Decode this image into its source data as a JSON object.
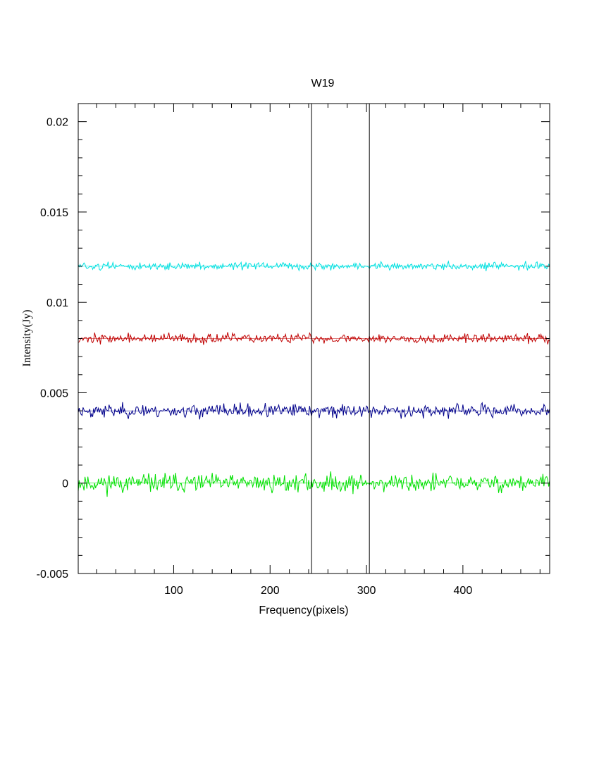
{
  "chart_data": {
    "type": "line",
    "title": "W19",
    "xlabel": "Frequency(pixels)",
    "ylabel": "Intensity(Jy)",
    "xlim": [
      1,
      490
    ],
    "ylim": [
      -0.005,
      0.021
    ],
    "x_ticks": [
      100,
      200,
      300,
      400
    ],
    "x_tick_labels": [
      "100",
      "200",
      "300",
      "400"
    ],
    "y_ticks": [
      -0.005,
      0,
      0.005,
      0.01,
      0.015,
      0.02
    ],
    "y_tick_labels": [
      "-0.005",
      "0",
      "0.005",
      "0.01",
      "0.015",
      "0.02"
    ],
    "grid": false,
    "legend": false,
    "vertical_markers": [
      243,
      303
    ],
    "series": [
      {
        "color": "#00e000",
        "baseline": 0.0,
        "noise": 0.00025,
        "seed": 11
      },
      {
        "color": "#00008b",
        "baseline": 0.004,
        "noise": 0.00018,
        "seed": 23
      },
      {
        "color": "#c00000",
        "baseline": 0.008,
        "noise": 0.00013,
        "seed": 37
      },
      {
        "color": "#00e0e0",
        "baseline": 0.012,
        "noise": 0.0001,
        "seed": 51
      }
    ]
  }
}
